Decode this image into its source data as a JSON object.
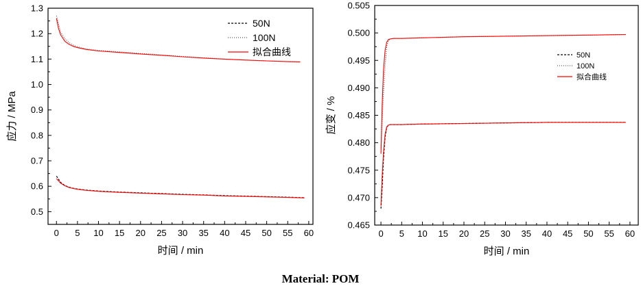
{
  "caption": "Material: POM",
  "colors": {
    "fit": "#ff0000",
    "s50": "#000000",
    "s100": "#555555",
    "axis": "#000000"
  },
  "chart_data": [
    {
      "type": "line",
      "xlabel": "时间 / min",
      "ylabel": "应力 / MPa",
      "xlim": [
        -2,
        61
      ],
      "ylim": [
        0.45,
        1.3
      ],
      "xticks": [
        "0",
        "5",
        "10",
        "15",
        "20",
        "25",
        "30",
        "35",
        "40",
        "45",
        "50",
        "55",
        "60"
      ],
      "yticks": [
        "0.5",
        "0.6",
        "0.7",
        "0.8",
        "0.9",
        "1.0",
        "1.1",
        "1.2",
        "1.3"
      ],
      "legend": [
        "50N",
        "100N",
        "拟合曲线"
      ],
      "legend_position": "top-right",
      "series": [
        {
          "name": "50N",
          "style": "dashed",
          "color": "#000000",
          "x": [
            0,
            1,
            2,
            3,
            4,
            5,
            7,
            10,
            15,
            20,
            25,
            30,
            35,
            40,
            45,
            50,
            55,
            59
          ],
          "y": [
            0.64,
            0.615,
            0.603,
            0.596,
            0.592,
            0.589,
            0.585,
            0.581,
            0.577,
            0.574,
            0.571,
            0.568,
            0.566,
            0.563,
            0.561,
            0.559,
            0.557,
            0.555
          ]
        },
        {
          "name": "100N",
          "style": "dotted",
          "color": "#555555",
          "x": [
            0,
            1,
            2,
            3,
            4,
            5,
            7,
            10,
            15,
            20,
            25,
            30,
            35,
            40,
            45,
            50,
            55,
            58
          ],
          "y": [
            1.27,
            1.205,
            1.18,
            1.165,
            1.155,
            1.148,
            1.14,
            1.134,
            1.128,
            1.122,
            1.116,
            1.11,
            1.105,
            1.1,
            1.096,
            1.093,
            1.09,
            1.088
          ]
        },
        {
          "name": "拟合曲线",
          "style": "solid",
          "color": "#ff0000",
          "x": [
            0,
            0.5,
            1,
            2,
            3,
            4,
            5,
            7,
            10,
            15,
            20,
            25,
            30,
            35,
            40,
            45,
            50,
            55,
            58
          ],
          "y": [
            1.26,
            1.22,
            1.195,
            1.17,
            1.158,
            1.15,
            1.145,
            1.138,
            1.132,
            1.126,
            1.12,
            1.115,
            1.109,
            1.104,
            1.1,
            1.096,
            1.093,
            1.09,
            1.089
          ]
        },
        {
          "name": "拟合曲线",
          "style": "solid",
          "color": "#ff0000",
          "x": [
            0,
            1,
            2,
            3,
            4,
            5,
            7,
            10,
            15,
            20,
            25,
            30,
            35,
            40,
            45,
            50,
            55,
            59
          ],
          "y": [
            0.63,
            0.612,
            0.602,
            0.595,
            0.591,
            0.588,
            0.584,
            0.58,
            0.576,
            0.573,
            0.57,
            0.567,
            0.565,
            0.562,
            0.56,
            0.558,
            0.556,
            0.554
          ]
        }
      ]
    },
    {
      "type": "line",
      "xlabel": "时间 / min",
      "ylabel": "应变 / %",
      "xlim": [
        -1.5,
        62
      ],
      "ylim": [
        0.465,
        0.505
      ],
      "xticks": [
        "0",
        "5",
        "10",
        "15",
        "20",
        "25",
        "30",
        "35",
        "40",
        "45",
        "50",
        "55",
        "60"
      ],
      "yticks": [
        "0.465",
        "0.470",
        "0.475",
        "0.480",
        "0.485",
        "0.490",
        "0.495",
        "0.500",
        "0.505"
      ],
      "legend": [
        "50N",
        "100N",
        "拟合曲线"
      ],
      "legend_position": "center-right",
      "series": [
        {
          "name": "50N",
          "style": "dashed",
          "color": "#000000",
          "x": [
            0,
            0.3,
            0.6,
            1,
            1.4,
            1.8,
            2.2,
            3,
            5,
            10,
            20,
            30,
            40,
            50,
            59
          ],
          "y": [
            0.468,
            0.472,
            0.477,
            0.481,
            0.4828,
            0.4832,
            0.4833,
            0.4833,
            0.4833,
            0.4834,
            0.4835,
            0.4836,
            0.4837,
            0.4837,
            0.4837
          ]
        },
        {
          "name": "100N",
          "style": "dotted",
          "color": "#555555",
          "x": [
            0,
            0.3,
            0.6,
            1,
            1.4,
            1.8,
            2.2,
            3,
            5,
            10,
            20,
            30,
            40,
            50,
            59
          ],
          "y": [
            0.479,
            0.484,
            0.489,
            0.494,
            0.4975,
            0.4986,
            0.4989,
            0.499,
            0.499,
            0.4991,
            0.4993,
            0.4994,
            0.4995,
            0.4996,
            0.4997
          ]
        },
        {
          "name": "拟合曲线",
          "style": "solid",
          "color": "#ff0000",
          "x": [
            0,
            0.3,
            0.6,
            1,
            1.4,
            1.8,
            2.2,
            3,
            5,
            10,
            20,
            30,
            40,
            50,
            59
          ],
          "y": [
            0.4685,
            0.474,
            0.478,
            0.4815,
            0.4829,
            0.4832,
            0.4833,
            0.4833,
            0.4833,
            0.4834,
            0.4835,
            0.4836,
            0.4837,
            0.4837,
            0.4837
          ]
        },
        {
          "name": "拟合曲线",
          "style": "solid",
          "color": "#ff0000",
          "x": [
            0,
            0.3,
            0.6,
            1,
            1.4,
            1.8,
            2.2,
            3,
            5,
            10,
            20,
            30,
            40,
            50,
            59
          ],
          "y": [
            0.478,
            0.487,
            0.493,
            0.4968,
            0.4983,
            0.4988,
            0.4989,
            0.499,
            0.499,
            0.4991,
            0.4993,
            0.4994,
            0.4995,
            0.4996,
            0.4997
          ]
        }
      ]
    }
  ]
}
